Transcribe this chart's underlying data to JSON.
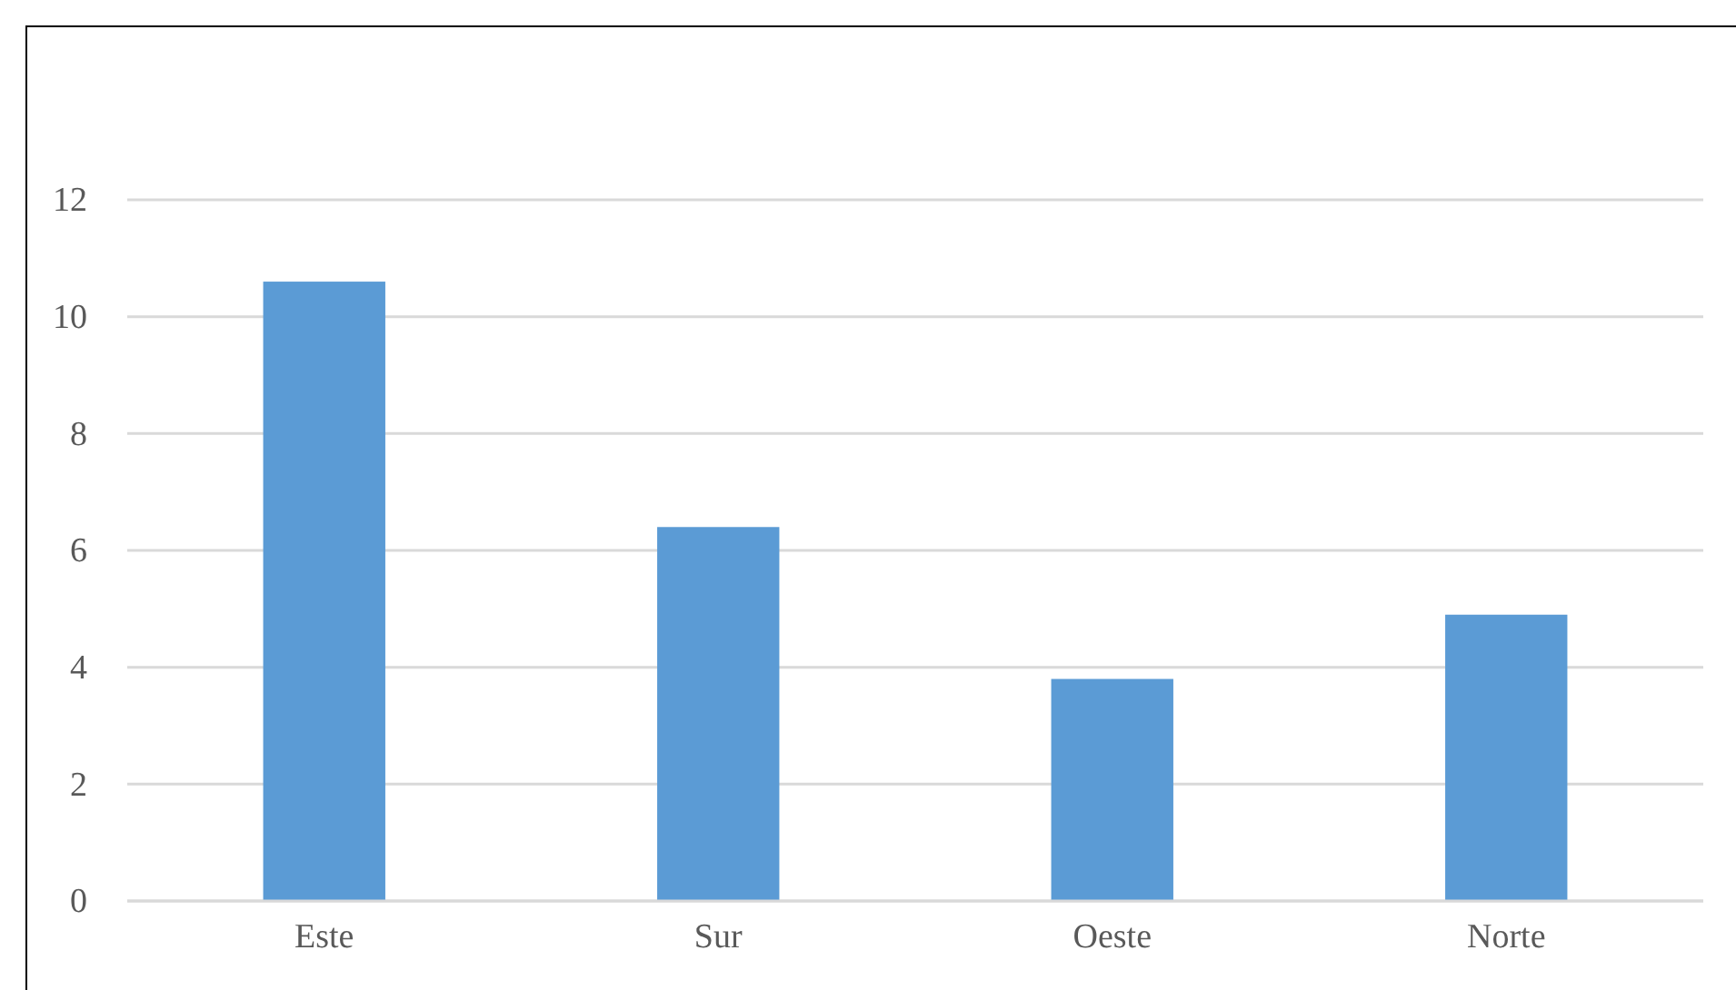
{
  "chart_data": {
    "type": "bar",
    "categories": [
      "Este",
      "Sur",
      "Oeste",
      "Norte"
    ],
    "values": [
      10.6,
      6.4,
      3.8,
      4.9
    ],
    "color": "#5b9bd5",
    "ylim": [
      0,
      12
    ],
    "yticks": [
      0,
      2,
      4,
      6,
      8,
      10,
      12
    ],
    "grid": "y"
  }
}
